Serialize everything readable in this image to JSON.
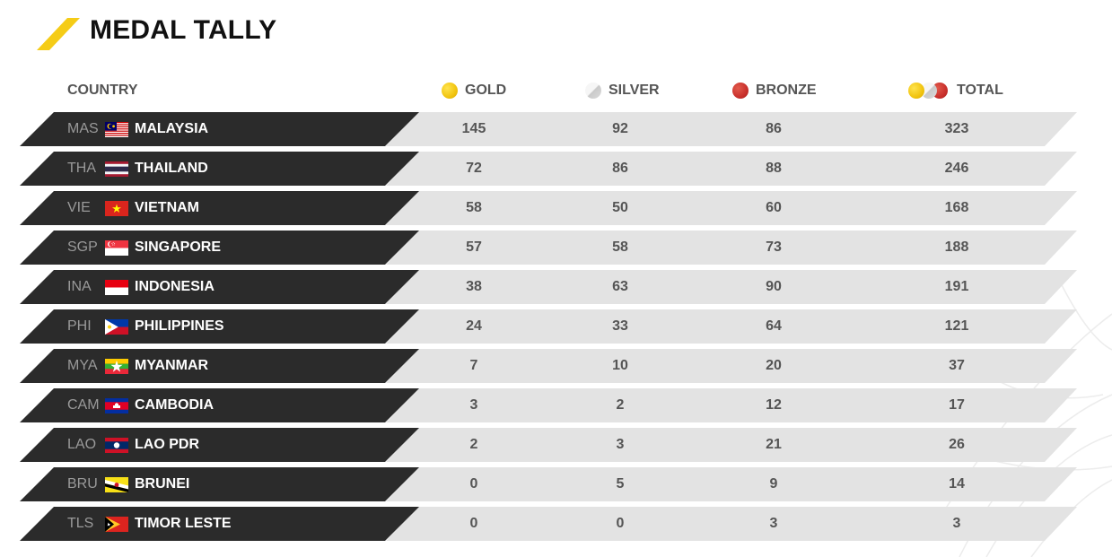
{
  "title": "MEDAL TALLY",
  "colors": {
    "accent": "#f5cc17",
    "dark_row": "#2b2b2b",
    "light_row": "#e3e3e3",
    "gold": "#f1c40f",
    "silver": "#dcdcdc",
    "bronze": "#c9302c"
  },
  "headers": {
    "country": "COUNTRY",
    "gold": "GOLD",
    "silver": "SILVER",
    "bronze": "BRONZE",
    "total": "TOTAL"
  },
  "rows": [
    {
      "code": "MAS",
      "country": "MALAYSIA",
      "flag": "malaysia-flag-icon",
      "gold": "145",
      "silver": "92",
      "bronze": "86",
      "total": "323"
    },
    {
      "code": "THA",
      "country": "THAILAND",
      "flag": "thailand-flag-icon",
      "gold": "72",
      "silver": "86",
      "bronze": "88",
      "total": "246"
    },
    {
      "code": "VIE",
      "country": "VIETNAM",
      "flag": "vietnam-flag-icon",
      "gold": "58",
      "silver": "50",
      "bronze": "60",
      "total": "168"
    },
    {
      "code": "SGP",
      "country": "SINGAPORE",
      "flag": "singapore-flag-icon",
      "gold": "57",
      "silver": "58",
      "bronze": "73",
      "total": "188"
    },
    {
      "code": "INA",
      "country": "INDONESIA",
      "flag": "indonesia-flag-icon",
      "gold": "38",
      "silver": "63",
      "bronze": "90",
      "total": "191"
    },
    {
      "code": "PHI",
      "country": "PHILIPPINES",
      "flag": "philippines-flag-icon",
      "gold": "24",
      "silver": "33",
      "bronze": "64",
      "total": "121"
    },
    {
      "code": "MYA",
      "country": "MYANMAR",
      "flag": "myanmar-flag-icon",
      "gold": "7",
      "silver": "10",
      "bronze": "20",
      "total": "37"
    },
    {
      "code": "CAM",
      "country": "CAMBODIA",
      "flag": "cambodia-flag-icon",
      "gold": "3",
      "silver": "2",
      "bronze": "12",
      "total": "17"
    },
    {
      "code": "LAO",
      "country": "LAO PDR",
      "flag": "laos-flag-icon",
      "gold": "2",
      "silver": "3",
      "bronze": "21",
      "total": "26"
    },
    {
      "code": "BRU",
      "country": "BRUNEI",
      "flag": "brunei-flag-icon",
      "gold": "0",
      "silver": "5",
      "bronze": "9",
      "total": "14"
    },
    {
      "code": "TLS",
      "country": "TIMOR LESTE",
      "flag": "timor-leste-flag-icon",
      "gold": "0",
      "silver": "0",
      "bronze": "3",
      "total": "3"
    }
  ]
}
